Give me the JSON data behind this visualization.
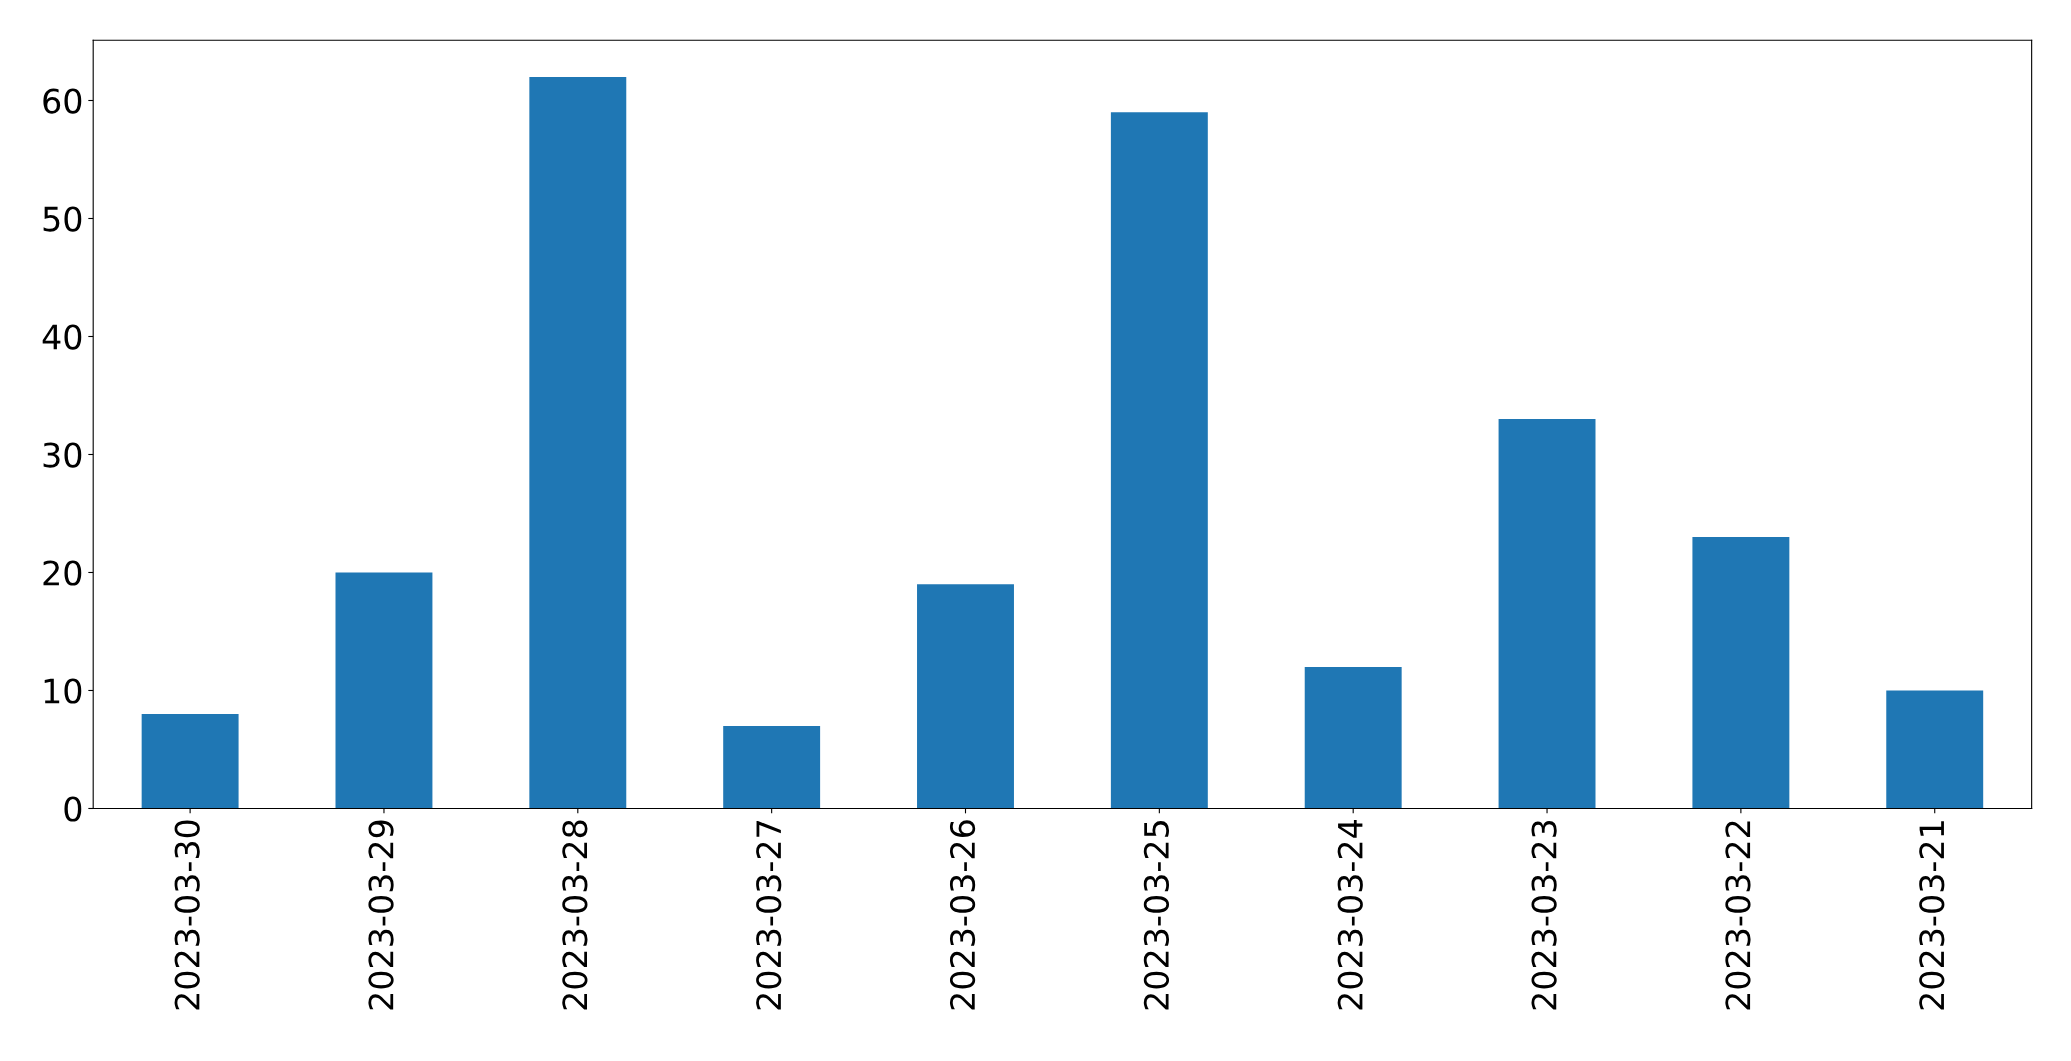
{
  "chart_data": {
    "type": "bar",
    "categories": [
      "2023-03-30",
      "2023-03-29",
      "2023-03-28",
      "2023-03-27",
      "2023-03-26",
      "2023-03-25",
      "2023-03-24",
      "2023-03-23",
      "2023-03-22",
      "2023-03-21"
    ],
    "values": [
      8,
      20,
      62,
      7,
      19,
      59,
      12,
      33,
      23,
      10
    ],
    "color": "#1f77b4",
    "ylim": [
      0,
      65.1
    ],
    "yticks": [
      0,
      10,
      20,
      30,
      40,
      50,
      60
    ],
    "grid": false
  }
}
